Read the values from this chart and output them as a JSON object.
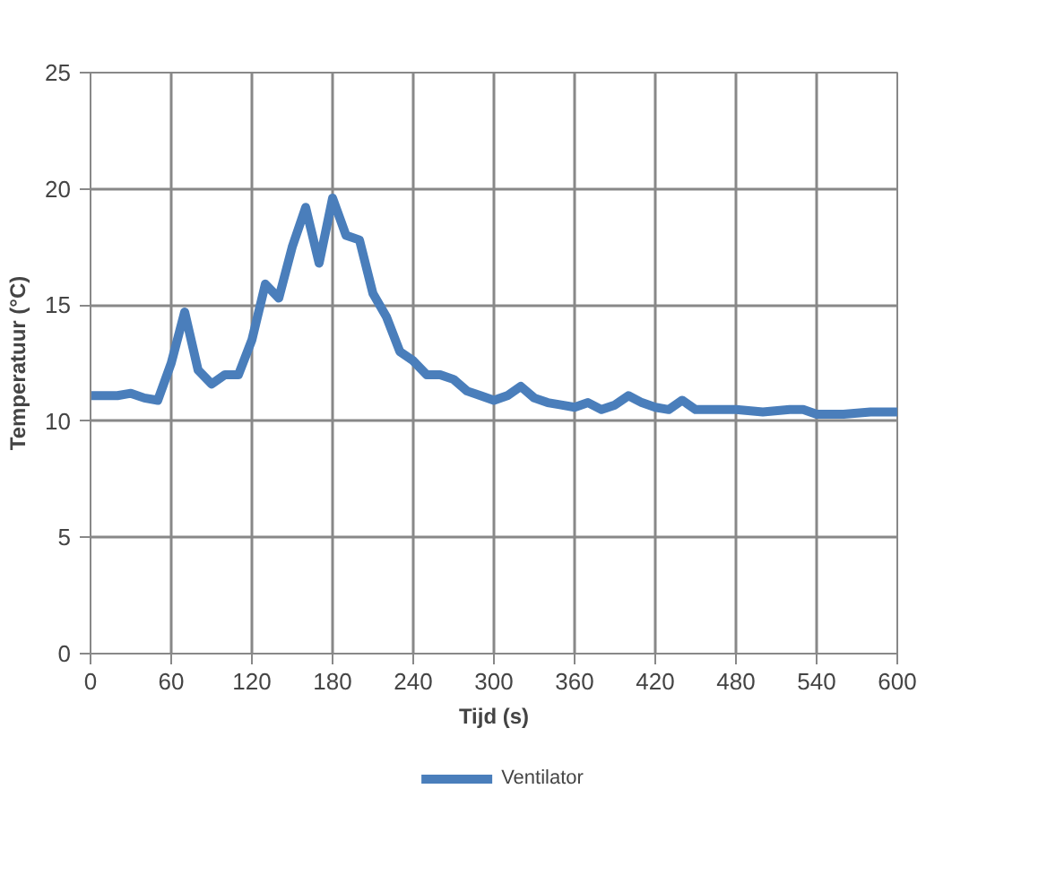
{
  "chart_data": {
    "type": "line",
    "xlabel": "Tijd (s)",
    "ylabel": "Temperatuur (°C)",
    "x": [
      0,
      10,
      20,
      30,
      40,
      50,
      60,
      70,
      80,
      90,
      100,
      110,
      120,
      130,
      140,
      150,
      160,
      170,
      180,
      190,
      200,
      210,
      220,
      230,
      240,
      250,
      260,
      270,
      280,
      290,
      300,
      310,
      320,
      330,
      340,
      350,
      360,
      370,
      380,
      390,
      400,
      410,
      420,
      430,
      440,
      450,
      460,
      480,
      500,
      520,
      530,
      540,
      560,
      580,
      600
    ],
    "series": [
      {
        "name": "Ventilator",
        "color": "#4a7ebb",
        "values": [
          11.1,
          11.1,
          11.1,
          11.2,
          11.0,
          10.9,
          12.5,
          14.7,
          12.2,
          11.6,
          12.0,
          12.0,
          13.5,
          15.9,
          15.3,
          17.5,
          19.2,
          16.8,
          19.6,
          18.0,
          17.8,
          15.5,
          14.5,
          13.0,
          12.6,
          12.0,
          12.0,
          11.8,
          11.3,
          11.1,
          10.9,
          11.1,
          11.5,
          11.0,
          10.8,
          10.7,
          10.6,
          10.8,
          10.5,
          10.7,
          11.1,
          10.8,
          10.6,
          10.5,
          10.9,
          10.5,
          10.5,
          10.5,
          10.4,
          10.5,
          10.5,
          10.3,
          10.3,
          10.4,
          10.4
        ]
      }
    ],
    "xlim": [
      0,
      600
    ],
    "xticks": [
      0,
      60,
      120,
      180,
      240,
      300,
      360,
      420,
      480,
      540,
      600
    ],
    "ylim": [
      0,
      25
    ],
    "yticks": [
      0,
      5,
      10,
      15,
      20,
      25
    ],
    "grid": true,
    "legend": "bottom",
    "marker": "none",
    "line_style": "solid"
  }
}
